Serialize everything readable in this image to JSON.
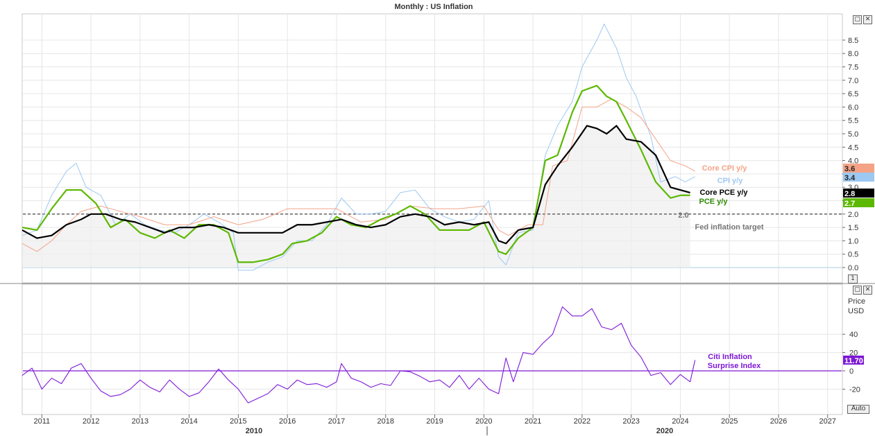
{
  "title": "Monthly : US Inflation",
  "colors": {
    "cpi": "#9cc8f2",
    "core_cpi": "#f4a387",
    "core_pce": "#000000",
    "pce": "#5cb800",
    "citi": "#7d18d6",
    "target": "#555555",
    "grid": "#e6e6e6"
  },
  "top_panel": {
    "yticks": [
      0.0,
      0.5,
      1.0,
      1.5,
      2.0,
      2.5,
      3.0,
      3.5,
      4.0,
      4.5,
      5.0,
      5.5,
      6.0,
      6.5,
      7.0,
      7.5,
      8.0,
      8.5
    ],
    "ytick_labels": [
      "0.0",
      "0.5",
      "1.0",
      "1.5",
      "2.0",
      "2.5",
      "3.0",
      "3.5",
      "4.0",
      "4.5",
      "5.0",
      "5.5",
      "6.0",
      "6.5",
      "7.0",
      "7.5",
      "8.0",
      "8.5"
    ],
    "target_value_label": "2.0",
    "target_caption": "Fed inflation target",
    "corner_label": "1"
  },
  "bottom_panel": {
    "header": "Price",
    "currency": "USD",
    "yticks": [
      -20,
      0,
      20,
      40
    ],
    "ytick_labels": [
      "-20",
      "0",
      "20",
      "40"
    ],
    "series_label_line1": "Citi Inflation",
    "series_label_line2": "Surprise Index",
    "last_value_label": "11.70",
    "auto_button": "Auto"
  },
  "x_axis": {
    "year_labels": [
      "2011",
      "2012",
      "2013",
      "2014",
      "2015",
      "2016",
      "2017",
      "2018",
      "2019",
      "2020",
      "2021",
      "2022",
      "2023",
      "2024",
      "2025",
      "2026",
      "2027"
    ],
    "era_labels": [
      "2010",
      "2020"
    ]
  },
  "window_controls": {
    "restore": "▢",
    "close": "✕"
  },
  "chart_data": [
    {
      "type": "line",
      "title": "Monthly : US Inflation",
      "ylim": [
        -0.2,
        9.0
      ],
      "xlim": [
        2010.6,
        2027.3
      ],
      "series": [
        {
          "name": "CPI y/y",
          "last_label": "3.4",
          "color": "#9cc8f2",
          "x": [
            2010.6,
            2010.9,
            2011.2,
            2011.5,
            2011.7,
            2011.9,
            2012.2,
            2012.5,
            2012.8,
            2013.1,
            2013.4,
            2013.7,
            2014.0,
            2014.3,
            2014.6,
            2014.9,
            2015.0,
            2015.3,
            2015.6,
            2015.9,
            2016.2,
            2016.5,
            2016.8,
            2017.1,
            2017.4,
            2017.7,
            2018.0,
            2018.3,
            2018.6,
            2018.9,
            2019.2,
            2019.5,
            2019.8,
            2020.1,
            2020.3,
            2020.45,
            2020.7,
            2021.0,
            2021.25,
            2021.5,
            2021.8,
            2022.0,
            2022.3,
            2022.45,
            2022.7,
            2022.9,
            2023.1,
            2023.4,
            2023.6,
            2023.9,
            2024.1,
            2024.3
          ],
          "y": [
            1.2,
            1.4,
            2.7,
            3.6,
            3.9,
            3.0,
            2.7,
            1.6,
            2.0,
            1.6,
            1.4,
            1.3,
            1.6,
            2.0,
            1.7,
            1.3,
            -0.1,
            -0.1,
            0.2,
            0.4,
            1.0,
            1.0,
            1.6,
            2.6,
            2.0,
            2.0,
            2.1,
            2.8,
            2.9,
            2.2,
            1.9,
            1.7,
            1.8,
            2.5,
            0.4,
            0.1,
            1.3,
            1.4,
            4.2,
            5.3,
            6.2,
            7.5,
            8.5,
            9.1,
            8.2,
            7.1,
            6.4,
            4.9,
            3.2,
            3.4,
            3.2,
            3.4
          ]
        },
        {
          "name": "Core CPI y/y",
          "last_label": "3.6",
          "color": "#f4a387",
          "x": [
            2010.6,
            2010.9,
            2011.2,
            2011.5,
            2011.8,
            2012.2,
            2012.6,
            2013.0,
            2013.5,
            2014.0,
            2014.5,
            2015.0,
            2015.5,
            2016.0,
            2016.5,
            2017.0,
            2017.5,
            2018.0,
            2018.5,
            2019.0,
            2019.5,
            2020.0,
            2020.3,
            2020.5,
            2020.9,
            2021.2,
            2021.4,
            2021.7,
            2022.0,
            2022.3,
            2022.6,
            2022.9,
            2023.2,
            2023.5,
            2023.8,
            2024.1,
            2024.3
          ],
          "y": [
            0.9,
            0.6,
            1.0,
            1.6,
            2.1,
            2.3,
            2.1,
            1.9,
            1.6,
            1.6,
            1.9,
            1.6,
            1.8,
            2.2,
            2.2,
            2.2,
            1.7,
            1.8,
            2.3,
            2.2,
            2.2,
            2.3,
            1.4,
            1.2,
            1.6,
            1.6,
            3.8,
            4.0,
            6.0,
            6.0,
            6.3,
            6.0,
            5.6,
            4.8,
            4.0,
            3.8,
            3.6
          ]
        },
        {
          "name": "Core PCE y/y",
          "last_label": "2.8",
          "color": "#000000",
          "x": [
            2010.6,
            2010.9,
            2011.2,
            2011.5,
            2011.8,
            2012.0,
            2012.3,
            2012.6,
            2012.9,
            2013.2,
            2013.5,
            2013.8,
            2014.1,
            2014.4,
            2014.7,
            2015.0,
            2015.3,
            2015.6,
            2015.9,
            2016.2,
            2016.5,
            2016.8,
            2017.1,
            2017.4,
            2017.7,
            2018.0,
            2018.3,
            2018.6,
            2018.9,
            2019.2,
            2019.5,
            2019.8,
            2020.1,
            2020.3,
            2020.45,
            2020.7,
            2021.0,
            2021.25,
            2021.5,
            2021.8,
            2022.1,
            2022.3,
            2022.5,
            2022.7,
            2022.9,
            2023.2,
            2023.5,
            2023.8,
            2024.0,
            2024.2
          ],
          "y": [
            1.4,
            1.1,
            1.2,
            1.6,
            1.8,
            2.0,
            2.0,
            1.8,
            1.7,
            1.5,
            1.3,
            1.5,
            1.5,
            1.6,
            1.5,
            1.3,
            1.3,
            1.3,
            1.3,
            1.6,
            1.6,
            1.7,
            1.8,
            1.6,
            1.5,
            1.6,
            1.9,
            2.0,
            1.9,
            1.6,
            1.7,
            1.6,
            1.7,
            1.0,
            0.9,
            1.4,
            1.5,
            3.1,
            3.8,
            4.5,
            5.3,
            5.2,
            5.0,
            5.3,
            4.8,
            4.7,
            4.2,
            3.0,
            2.9,
            2.8
          ]
        },
        {
          "name": "PCE y/y",
          "last_label": "2.7",
          "color": "#5cb800",
          "x": [
            2010.6,
            2010.9,
            2011.2,
            2011.5,
            2011.8,
            2012.1,
            2012.4,
            2012.7,
            2013.0,
            2013.3,
            2013.6,
            2013.9,
            2014.2,
            2014.5,
            2014.8,
            2015.0,
            2015.3,
            2015.6,
            2015.9,
            2016.1,
            2016.4,
            2016.7,
            2017.0,
            2017.3,
            2017.6,
            2017.9,
            2018.2,
            2018.5,
            2018.8,
            2019.1,
            2019.4,
            2019.7,
            2020.0,
            2020.3,
            2020.45,
            2020.7,
            2021.0,
            2021.25,
            2021.5,
            2021.8,
            2022.0,
            2022.3,
            2022.5,
            2022.7,
            2022.9,
            2023.2,
            2023.5,
            2023.8,
            2024.0,
            2024.2
          ],
          "y": [
            1.5,
            1.4,
            2.2,
            2.9,
            2.9,
            2.4,
            1.5,
            1.8,
            1.3,
            1.1,
            1.4,
            1.1,
            1.6,
            1.6,
            1.3,
            0.2,
            0.2,
            0.3,
            0.5,
            0.9,
            1.0,
            1.3,
            1.9,
            1.6,
            1.5,
            1.8,
            2.0,
            2.3,
            2.0,
            1.4,
            1.4,
            1.4,
            1.7,
            0.6,
            0.5,
            1.1,
            1.5,
            4.0,
            4.2,
            5.8,
            6.6,
            6.8,
            6.4,
            6.2,
            5.5,
            4.4,
            3.2,
            2.6,
            2.7,
            2.7
          ]
        }
      ],
      "reference_line": {
        "name": "Fed inflation target",
        "value": 2.0
      }
    },
    {
      "type": "line",
      "ylim": [
        -36,
        70
      ],
      "xlim": [
        2010.6,
        2027.3
      ],
      "series": [
        {
          "name": "Citi Inflation Surprise Index",
          "last_label": "11.70",
          "color": "#7d18d6",
          "x": [
            2010.6,
            2010.8,
            2011.0,
            2011.2,
            2011.4,
            2011.6,
            2011.8,
            2012.0,
            2012.2,
            2012.4,
            2012.6,
            2012.8,
            2013.0,
            2013.2,
            2013.4,
            2013.6,
            2013.8,
            2014.0,
            2014.2,
            2014.4,
            2014.6,
            2014.8,
            2015.0,
            2015.2,
            2015.4,
            2015.6,
            2015.8,
            2016.0,
            2016.2,
            2016.4,
            2016.6,
            2016.8,
            2017.0,
            2017.1,
            2017.3,
            2017.5,
            2017.7,
            2017.9,
            2018.1,
            2018.3,
            2018.5,
            2018.7,
            2018.9,
            2019.1,
            2019.3,
            2019.5,
            2019.7,
            2019.9,
            2020.1,
            2020.3,
            2020.45,
            2020.6,
            2020.8,
            2021.0,
            2021.2,
            2021.4,
            2021.6,
            2021.8,
            2022.0,
            2022.2,
            2022.4,
            2022.6,
            2022.8,
            2023.0,
            2023.2,
            2023.4,
            2023.6,
            2023.8,
            2024.0,
            2024.2,
            2024.3
          ],
          "y": [
            -5,
            3,
            -20,
            -8,
            -14,
            3,
            8,
            -8,
            -22,
            -28,
            -26,
            -20,
            -10,
            -18,
            -23,
            -10,
            -20,
            -28,
            -24,
            -12,
            2,
            -10,
            -20,
            -35,
            -30,
            -25,
            -15,
            -20,
            -10,
            -15,
            -14,
            -18,
            -12,
            8,
            -8,
            -12,
            -18,
            -14,
            -16,
            0,
            -1,
            -6,
            -12,
            -10,
            -18,
            -5,
            -20,
            -8,
            -20,
            -25,
            14,
            -12,
            20,
            18,
            30,
            40,
            70,
            60,
            60,
            68,
            48,
            45,
            52,
            28,
            15,
            -5,
            -2,
            -15,
            -4,
            -12,
            11.7
          ]
        }
      ],
      "reference_line": {
        "value": 0
      }
    }
  ]
}
